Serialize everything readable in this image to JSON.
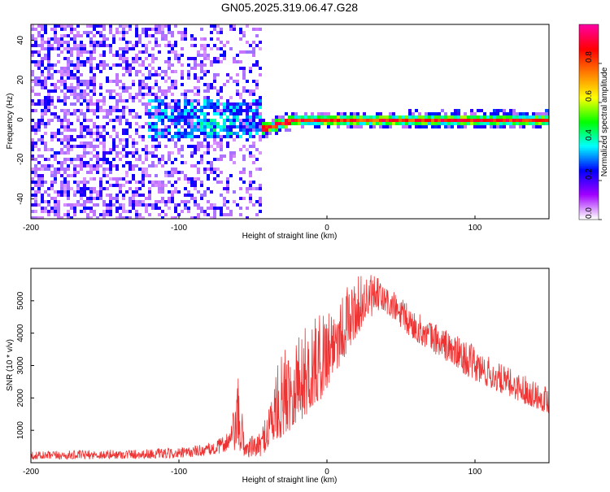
{
  "title": "GN05.2025.319.06.47.G28",
  "chart_data": [
    {
      "type": "heatmap",
      "xlabel": "Height of straight line (km)",
      "ylabel": "Frequency (Hz)",
      "xlim": [
        -200,
        150
      ],
      "ylim": [
        -50,
        48
      ],
      "xticks": [
        -200,
        -100,
        0,
        100
      ],
      "yticks": [
        -40,
        -20,
        0,
        20,
        40
      ],
      "colorbar": {
        "label": "Normalized spectral amplitude",
        "range": [
          0,
          1
        ],
        "ticks": [
          0.0,
          0.2,
          0.4,
          0.6,
          0.8
        ],
        "tick_labels": [
          "0.0",
          "0.2",
          "0.4",
          "0.6",
          "0.8"
        ],
        "colormap": [
          "#ffffff",
          "#a000ff",
          "#0000ff",
          "#00ffff",
          "#00ff00",
          "#ffff00",
          "#ff8000",
          "#ff0000",
          "#ff00a0"
        ]
      },
      "regions": [
        {
          "x": [
            -200,
            -45
          ],
          "y": [
            -50,
            48
          ],
          "amplitude": 0.12,
          "description": "broadband noise"
        },
        {
          "x": [
            -120,
            -60
          ],
          "y": [
            -12,
            12
          ],
          "amplitude": 0.3
        },
        {
          "x": [
            -45,
            150
          ],
          "y": [
            -3,
            3
          ],
          "amplitude": 0.85,
          "center_hz": [
            [
              -45,
              -5
            ],
            [
              -20,
              0
            ],
            [
              0,
              0
            ],
            [
              150,
              0
            ]
          ]
        }
      ]
    },
    {
      "type": "line",
      "xlabel": "Height of straight line (km)",
      "ylabel": "SNR (10 * v/v)",
      "xlim": [
        -200,
        150
      ],
      "ylim": [
        0,
        6000
      ],
      "xticks": [
        -200,
        -100,
        0,
        100
      ],
      "yticks": [
        1000,
        2000,
        3000,
        4000,
        5000
      ],
      "color": "#ee3333",
      "envelope": {
        "x": [
          -200,
          -150,
          -100,
          -75,
          -65,
          -60,
          -55,
          -45,
          -35,
          -25,
          -15,
          -5,
          5,
          15,
          25,
          35,
          45,
          55,
          65,
          75,
          85,
          100,
          115,
          130,
          150
        ],
        "low": [
          100,
          120,
          140,
          250,
          400,
          300,
          150,
          200,
          600,
          1000,
          1400,
          1900,
          2700,
          3500,
          4300,
          4700,
          4400,
          3900,
          3600,
          3300,
          3000,
          2500,
          2200,
          1900,
          1500
        ],
        "high": [
          350,
          400,
          450,
          650,
          1100,
          2600,
          800,
          900,
          2800,
          4000,
          4200,
          4600,
          5200,
          5500,
          5900,
          5700,
          5300,
          4900,
          4500,
          4300,
          4000,
          3600,
          3100,
          2800,
          2400
        ]
      }
    }
  ]
}
